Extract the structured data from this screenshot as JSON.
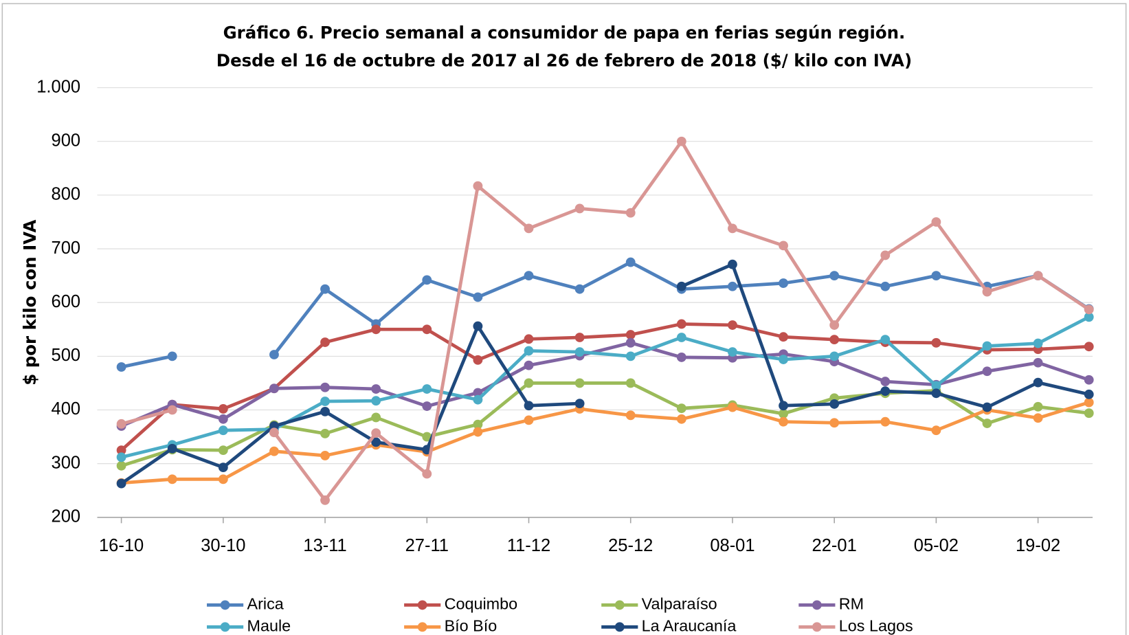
{
  "chart_data": {
    "type": "line",
    "title": [
      "Gráfico 6. Precio semanal a consumidor de papa en ferias según región.",
      "Desde el 16 de octubre de 2017 al 26 de febrero de 2018 ($/ kilo con IVA)"
    ],
    "y_label": "$ por kilo con IVA",
    "categories": [
      "16-10",
      null,
      "30-10",
      null,
      "13-11",
      null,
      "27-11",
      null,
      "11-12",
      null,
      "25-12",
      null,
      "08-01",
      null,
      "22-01",
      null,
      "05-02",
      null,
      "19-02",
      null
    ],
    "ylim": [
      200,
      1000
    ],
    "yticks": [
      200,
      300,
      400,
      500,
      600,
      700,
      800,
      900,
      {
        "value": 1000,
        "label": "1.000"
      }
    ],
    "grid": true,
    "legend": "bottom",
    "series": [
      {
        "name": "Arica",
        "color": "#4f81bd",
        "values": [
          480,
          500,
          null,
          503,
          625,
          560,
          642,
          610,
          650,
          625,
          675,
          625,
          630,
          636,
          650,
          630,
          650,
          630,
          650,
          588
        ]
      },
      {
        "name": "Coquimbo",
        "color": "#c0504d",
        "values": [
          325,
          410,
          402,
          440,
          526,
          550,
          550,
          493,
          532,
          535,
          540,
          560,
          558,
          536,
          531,
          526,
          525,
          512,
          513,
          518
        ]
      },
      {
        "name": "Valparaíso",
        "color": "#9bbb59",
        "values": [
          296,
          326,
          325,
          372,
          356,
          386,
          350,
          373,
          450,
          450,
          450,
          403,
          409,
          393,
          422,
          431,
          436,
          375,
          406,
          394
        ]
      },
      {
        "name": "RM",
        "color": "#8064a2",
        "values": [
          370,
          410,
          383,
          440,
          442,
          439,
          407,
          432,
          483,
          501,
          525,
          498,
          497,
          504,
          490,
          453,
          447,
          472,
          488,
          456
        ]
      },
      {
        "name": "Maule",
        "color": "#4bacc6",
        "values": [
          312,
          335,
          362,
          364,
          416,
          417,
          439,
          419,
          510,
          508,
          500,
          535,
          508,
          494,
          500,
          531,
          445,
          519,
          524,
          573
        ]
      },
      {
        "name": "Bío Bío",
        "color": "#f79646",
        "values": [
          264,
          271,
          271,
          323,
          315,
          335,
          322,
          359,
          381,
          402,
          390,
          383,
          405,
          378,
          376,
          378,
          362,
          400,
          385,
          414
        ]
      },
      {
        "name": "La Araucanía",
        "color": "#1f497d",
        "values": [
          263,
          328,
          293,
          370,
          397,
          340,
          326,
          556,
          408,
          412,
          null,
          630,
          671,
          408,
          411,
          435,
          431,
          405,
          451,
          429
        ]
      },
      {
        "name": "Los Lagos",
        "color": "#d99694",
        "values": [
          374,
          400,
          null,
          358,
          232,
          357,
          281,
          817,
          738,
          775,
          767,
          900,
          738,
          706,
          558,
          688,
          750,
          620,
          650,
          587
        ]
      }
    ]
  }
}
